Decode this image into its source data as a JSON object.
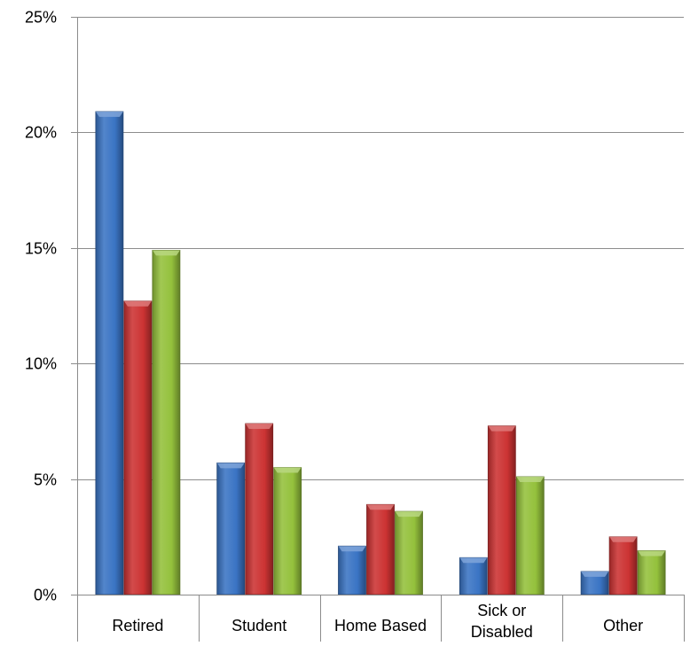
{
  "chart_data": {
    "type": "bar",
    "categories": [
      "Retired",
      "Student",
      "Home Based",
      "Sick or Disabled",
      "Other"
    ],
    "category_lines": [
      [
        "Retired"
      ],
      [
        "Student"
      ],
      [
        "Home Based"
      ],
      [
        "Sick or",
        "Disabled"
      ],
      [
        "Other"
      ]
    ],
    "series": [
      {
        "values": [
          20.9,
          5.7,
          2.1,
          1.6,
          1.0
        ]
      },
      {
        "values": [
          12.7,
          7.4,
          3.9,
          7.3,
          2.5
        ]
      },
      {
        "values": [
          14.9,
          5.5,
          3.6,
          5.1,
          1.9
        ]
      }
    ],
    "colors": [
      "#3a74c4",
      "#cc3333",
      "#94c13c"
    ],
    "ylim": [
      0,
      25
    ],
    "yticks": [
      0,
      5,
      10,
      15,
      20,
      25
    ],
    "ytick_labels": [
      "0%",
      "5%",
      "10%",
      "15%",
      "20%",
      "25%"
    ],
    "grid": true,
    "legend": "none"
  }
}
